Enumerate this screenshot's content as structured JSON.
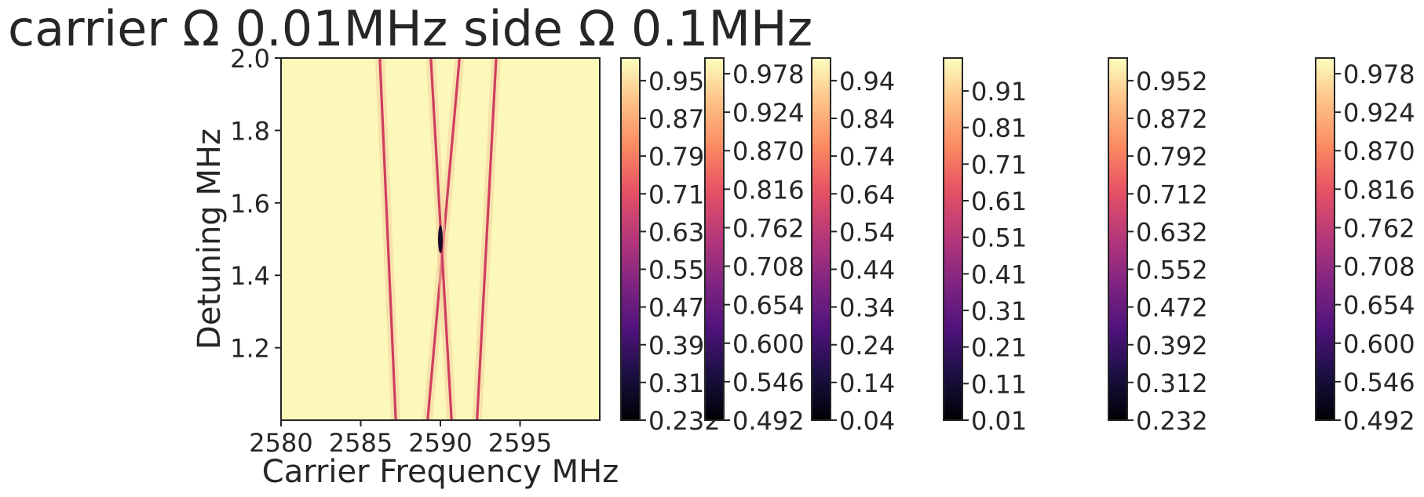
{
  "chart_data": {
    "type": "heatmap",
    "title": "carrier Ω 0.01MHz side Ω 0.1MHz",
    "xlabel": "Carrier Frequency MHz",
    "ylabel": "Detuning MHz",
    "xlim": [
      2580,
      2600
    ],
    "ylim": [
      1.0,
      2.0
    ],
    "xticks": [
      "2580",
      "2585",
      "2590",
      "2595"
    ],
    "yticks": [
      "1.2",
      "1.4",
      "1.6",
      "1.8",
      "2.0"
    ],
    "colormap": "magma",
    "background_value_color": "#fcf8b9",
    "resonance_lines": [
      {
        "x_at_ylow": 2587.2,
        "x_at_yhigh": 2586.2
      },
      {
        "x_at_ylow": 2589.2,
        "x_at_yhigh": 2591.2
      },
      {
        "x_at_ylow": 2590.7,
        "x_at_yhigh": 2589.4
      },
      {
        "x_at_ylow": 2592.3,
        "x_at_yhigh": 2593.5
      }
    ],
    "colorbars": [
      {
        "ticks": [
          "0.232",
          "0.312",
          "0.392",
          "0.472",
          "0.552",
          "0.632",
          "0.712",
          "0.792",
          "0.872",
          "0.952"
        ],
        "range": [
          0.232,
          1.0
        ]
      },
      {
        "ticks": [
          "0.492",
          "0.546",
          "0.600",
          "0.654",
          "0.708",
          "0.762",
          "0.816",
          "0.870",
          "0.924",
          "0.978"
        ],
        "range": [
          0.492,
          1.0
        ]
      },
      {
        "ticks": [
          "0.04",
          "0.14",
          "0.24",
          "0.34",
          "0.44",
          "0.54",
          "0.64",
          "0.74",
          "0.84",
          "0.94"
        ],
        "range": [
          0.04,
          1.0
        ]
      },
      {
        "ticks": [
          "0.01",
          "0.11",
          "0.21",
          "0.31",
          "0.41",
          "0.51",
          "0.61",
          "0.71",
          "0.81",
          "0.91"
        ],
        "range": [
          0.01,
          1.0
        ]
      },
      {
        "ticks": [
          "0.232",
          "0.312",
          "0.392",
          "0.472",
          "0.552",
          "0.632",
          "0.712",
          "0.792",
          "0.872",
          "0.952"
        ],
        "range": [
          0.232,
          1.0
        ]
      },
      {
        "ticks": [
          "0.492",
          "0.546",
          "0.600",
          "0.654",
          "0.708",
          "0.762",
          "0.816",
          "0.870",
          "0.924",
          "0.978"
        ],
        "range": [
          0.492,
          1.0
        ]
      }
    ]
  }
}
